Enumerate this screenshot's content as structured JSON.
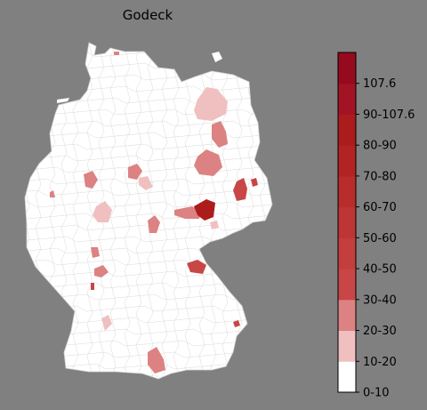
{
  "map": {
    "title": "Godeck",
    "region": "Germany",
    "colors": {
      "background": "#808080",
      "land": "#ffffff",
      "border": "#cfcfcf"
    }
  },
  "legend": {
    "colors": [
      "#ffffff",
      "#f0c0c0",
      "#dc8282",
      "#c84646",
      "#c43e3e",
      "#bd3535",
      "#b82c2c",
      "#b22424",
      "#ac1c1c",
      "#a21424",
      "#960a1e"
    ],
    "labels": [
      "0-10",
      "10-20",
      "20-30",
      "30-40",
      "40-50",
      "50-60",
      "60-70",
      "70-80",
      "80-90",
      "90-107.6",
      "107.6"
    ]
  }
}
